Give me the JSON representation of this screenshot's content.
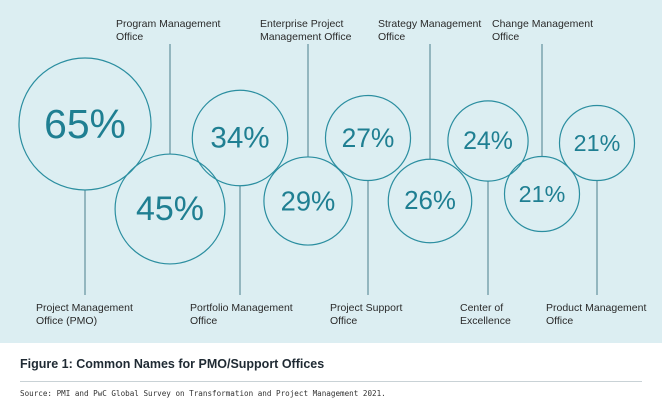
{
  "chart_data": {
    "type": "bubble",
    "title": "Figure 1: Common Names for PMO/Support Offices",
    "source": "Source: PMI and PwC Global Survey on Transformation and Project Management 2021.",
    "unit": "%",
    "categories": [
      "Project Management\nOffice (PMO)",
      "Program Management\nOffice",
      "Portfolio Management\nOffice",
      "Enterprise Project\nManagement Office",
      "Project Support\nOffice",
      "Strategy Management\nOffice",
      "Center of\nExcellence",
      "Change Management\nOffice",
      "Product Management\nOffice"
    ],
    "values": [
      65,
      45,
      34,
      29,
      27,
      26,
      24,
      21,
      21
    ],
    "value_labels": [
      "65%",
      "45%",
      "34%",
      "29%",
      "27%",
      "26%",
      "24%",
      "21%",
      "21%"
    ],
    "label_position": [
      "bottom",
      "top",
      "bottom",
      "top",
      "bottom",
      "top",
      "bottom",
      "top",
      "bottom"
    ]
  },
  "colors": {
    "panel_background": "#dceef2",
    "circle_stroke": "#2b8ea0",
    "value_text": "#1f7f92",
    "leader_line": "#4a7f8c",
    "label_text": "#2a2a2a"
  }
}
